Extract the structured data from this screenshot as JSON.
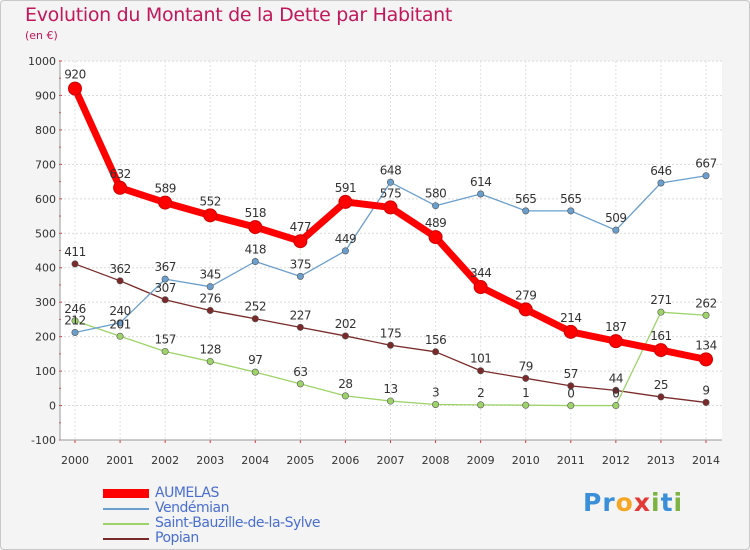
{
  "chart_data": {
    "type": "line",
    "title": "Evolution du Montant de la Dette par Habitant",
    "subtitle": "(en €)",
    "x": [
      "2000",
      "2001",
      "2002",
      "2003",
      "2004",
      "2005",
      "2006",
      "2007",
      "2008",
      "2009",
      "2010",
      "2011",
      "2012",
      "2013",
      "2014"
    ],
    "ylim": [
      -100,
      1000
    ],
    "yticks": [
      "-100",
      "0",
      "100",
      "200",
      "300",
      "400",
      "500",
      "600",
      "700",
      "800",
      "900",
      "1000"
    ],
    "series": [
      {
        "name": "AUMELAS",
        "color": "#ff0000",
        "values": [
          920,
          632,
          589,
          552,
          518,
          477,
          591,
          575,
          489,
          344,
          279,
          214,
          187,
          161,
          134
        ],
        "labels": [
          "920",
          "632",
          "589",
          "552",
          "518",
          "477",
          "591",
          "575",
          "489",
          "344",
          "279",
          "214",
          "187",
          "161",
          "134"
        ]
      },
      {
        "name": "Vendémian",
        "color": "#6a9fcd",
        "values": [
          212,
          240,
          367,
          345,
          418,
          375,
          449,
          648,
          580,
          614,
          565,
          565,
          509,
          646,
          667
        ],
        "labels": [
          "212",
          "240",
          "367",
          "345",
          "418",
          "375",
          "449",
          "648",
          "580",
          "614",
          "565",
          "565",
          "509",
          "646",
          "667"
        ]
      },
      {
        "name": "Saint-Bauzille-de-la-Sylve",
        "color": "#9ed36a",
        "values": [
          246,
          201,
          157,
          128,
          97,
          63,
          28,
          13,
          3,
          2,
          1,
          0,
          0,
          271,
          262
        ],
        "labels": [
          "246",
          "201",
          "157",
          "128",
          "97",
          "63",
          "28",
          "13",
          "3",
          "2",
          "1",
          "0",
          "0",
          "271",
          "262"
        ]
      },
      {
        "name": "Popian",
        "color": "#7a2a2a",
        "values": [
          411,
          362,
          307,
          276,
          252,
          227,
          202,
          175,
          156,
          101,
          79,
          57,
          44,
          25,
          9
        ],
        "labels": [
          "411",
          "362",
          "307",
          "276",
          "252",
          "227",
          "202",
          "175",
          "156",
          "101",
          "79",
          "57",
          "44",
          "25",
          "9"
        ]
      }
    ]
  },
  "logo": {
    "text": "Proxiti",
    "letters": [
      "P",
      "r",
      "o",
      "x",
      "i",
      "t",
      "i"
    ],
    "colors": [
      "#3b8fd9",
      "#3b8fd9",
      "#f5a623",
      "#e53935",
      "#7cb342",
      "#3b8fd9",
      "#7cb342"
    ]
  }
}
